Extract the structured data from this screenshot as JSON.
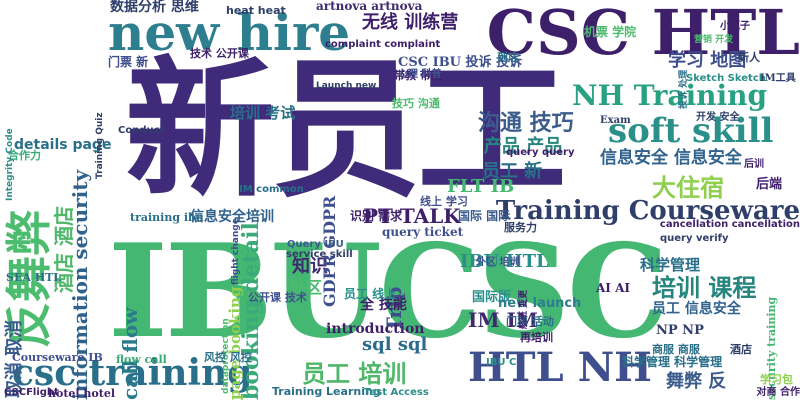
{
  "words": [
    {
      "text": "新员工",
      "color": "#3f2b7a"
    },
    {
      "text": "IBUCSC",
      "color": "#44b873"
    },
    {
      "text": "CSC HTL",
      "color": "#3e1f6a"
    },
    {
      "text": "new hire",
      "color": "#2d7e8e"
    },
    {
      "text": "反舞弊",
      "color": "#4cbc6e"
    },
    {
      "text": "csc training",
      "color": "#2a6f8a"
    },
    {
      "text": "HTL NH",
      "color": "#3f4f8e"
    },
    {
      "text": "soft skill",
      "color": "#2b8f8a"
    },
    {
      "text": "Training Courseware",
      "color": "#2f3f6a"
    },
    {
      "text": "booking detail",
      "color": "#3aaa78"
    },
    {
      "text": "NH Training",
      "color": "#27a182"
    },
    {
      "text": "information security",
      "color": "#30628e"
    },
    {
      "text": "大住宿",
      "color": "#8fcf4e"
    },
    {
      "text": "培训 课程",
      "color": "#26867e"
    },
    {
      "text": "员工 培训",
      "color": "#4eb76a"
    },
    {
      "text": "沟通 技巧",
      "color": "#3b5c8c"
    },
    {
      "text": "信息安全 信息安全",
      "color": "#30628e"
    },
    {
      "text": "无线 训练营",
      "color": "#3e1f6a"
    },
    {
      "text": "IBU HTL",
      "color": "#2a8f8a"
    },
    {
      "text": "call flow",
      "color": "#2a7a8c"
    },
    {
      "text": "sql sql",
      "color": "#2c6b8d"
    },
    {
      "text": "IM IM",
      "color": "#3e2a6e"
    },
    {
      "text": "舞弊 反",
      "color": "#3b5c8c"
    },
    {
      "text": "PT TALK",
      "color": "#3e1f6a"
    },
    {
      "text": "Trip",
      "color": "#3f4f8e"
    },
    {
      "text": "知识",
      "color": "#3e2a6e"
    },
    {
      "text": "GDPR GDPR",
      "color": "#3f4f8e"
    },
    {
      "text": "学习 地图",
      "color": "#3f4f8e"
    },
    {
      "text": "产品 产品",
      "color": "#26867e"
    },
    {
      "text": "员工 新",
      "color": "#2a6f8a"
    },
    {
      "text": "酒店 酒店",
      "color": "#4eb76a"
    },
    {
      "text": "取消 取消",
      "color": "#3b5c8c"
    },
    {
      "text": "page booking",
      "color": "#8fcf4e"
    },
    {
      "text": "details page",
      "color": "#2a6f8a"
    },
    {
      "text": "FLT IB",
      "color": "#44b873"
    },
    {
      "text": "数据分析 思维",
      "color": "#2f3f6a"
    },
    {
      "text": "heat heat",
      "color": "#2f3f6a"
    },
    {
      "text": "artnova artnova",
      "color": "#3e2a6e"
    },
    {
      "text": "CSC IBU 投诉 投诉",
      "color": "#3f4f8e"
    },
    {
      "text": "培训 考试",
      "color": "#2a6f8a"
    },
    {
      "text": "全 技能",
      "color": "#3e1f6a"
    },
    {
      "text": "外区",
      "color": "#4cbc6e"
    },
    {
      "text": "国际版",
      "color": "#2a8f8a"
    },
    {
      "text": "科学管理",
      "color": "#2a6f8a"
    },
    {
      "text": "员工 信息安全",
      "color": "#30628e"
    },
    {
      "text": "introduction",
      "color": "#3e1f6a"
    },
    {
      "text": "new launch",
      "color": "#2d7e8e"
    },
    {
      "text": "query ticket",
      "color": "#3f4f8e"
    },
    {
      "text": "信息安全培训",
      "color": "#30628e"
    },
    {
      "text": "Training Learning",
      "color": "#2a6f8a"
    },
    {
      "text": "Courseware IB",
      "color": "#3f4f8e"
    },
    {
      "text": "hotel hotel",
      "color": "#3e1f6a"
    },
    {
      "text": "Test Access",
      "color": "#2a8f8a"
    },
    {
      "text": "门票 新",
      "color": "#3f4f8e"
    },
    {
      "text": "技术 公开课",
      "color": "#3e1f6a"
    },
    {
      "text": "complaint complaint",
      "color": "#3e1f6a"
    },
    {
      "text": "service skill",
      "color": "#2f3f6a"
    },
    {
      "text": "Query IBU",
      "color": "#3b5c8c"
    },
    {
      "text": "AI AI",
      "color": "#3e1f6a"
    },
    {
      "text": "NP NP",
      "color": "#2f3f6a"
    },
    {
      "text": "dataprotection",
      "color": "#4cbc6e"
    },
    {
      "text": "SEA HTL",
      "color": "#2a6f8a"
    },
    {
      "text": "training ibu",
      "color": "#2a6f8a"
    },
    {
      "text": "IM common",
      "color": "#2a6f8a"
    },
    {
      "text": "flight change",
      "color": "#3f4f8e"
    },
    {
      "text": "cancellation cancellation",
      "color": "#3e1f6a"
    },
    {
      "text": "Exam",
      "color": "#2f3f6a"
    },
    {
      "text": "到店",
      "color": "#2a6f8a"
    },
    {
      "text": "机票 学院",
      "color": "#4cbc6e"
    },
    {
      "text": "小瓶子",
      "color": "#3e1f6a"
    },
    {
      "text": "后端",
      "color": "#3e1f6a"
    },
    {
      "text": "识别 需求",
      "color": "#3e1f6a"
    },
    {
      "text": "线上 学习",
      "color": "#3f4f8e"
    },
    {
      "text": "国际 国际",
      "color": "#3b5c8c"
    },
    {
      "text": "服务力",
      "color": "#2f3f6a"
    },
    {
      "text": "Sketch Sketch",
      "color": "#2a8f8a"
    },
    {
      "text": "IM工具",
      "color": "#2f3f6a"
    },
    {
      "text": "开发 安全",
      "color": "#2f3f6a"
    },
    {
      "text": "风控 风控",
      "color": "#2a6f8a"
    },
    {
      "text": "flow call",
      "color": "#3aaa78"
    },
    {
      "text": "员工 线上",
      "color": "#2a8f8a"
    },
    {
      "text": "公开课 技术",
      "color": "#3f4f8e"
    },
    {
      "text": "门票 活动",
      "color": "#2a6f8a"
    },
    {
      "text": "再培训",
      "color": "#3e1f6a"
    },
    {
      "text": "科学管理 科学管理",
      "color": "#2a6f8a"
    },
    {
      "text": "security training",
      "color": "#44b873"
    },
    {
      "text": "学习包",
      "color": "#8fcf4e"
    },
    {
      "text": "对商 合作",
      "color": "#3e1f6a"
    },
    {
      "text": "商服 商服",
      "color": "#2a6f8a"
    },
    {
      "text": "酒店",
      "color": "#2f3f6a"
    },
    {
      "text": "带教 带教",
      "color": "#3e1f6a"
    },
    {
      "text": "技巧 沟通",
      "color": "#4cbc6e"
    },
    {
      "text": "心理 科普",
      "color": "#3f4f8e"
    },
    {
      "text": "新人",
      "color": "#2f3f6a"
    },
    {
      "text": "合作力",
      "color": "#3aaa78"
    },
    {
      "text": "query query",
      "color": "#3e1f6a"
    },
    {
      "text": "query verify",
      "color": "#2f3f6a"
    },
    {
      "text": "CSCFlight",
      "color": "#3e1f6a"
    },
    {
      "text": "Conduct",
      "color": "#2f3f6a"
    },
    {
      "text": "Integrity Code",
      "color": "#2a8f8a"
    },
    {
      "text": "Launch new",
      "color": "#2f3f6a"
    },
    {
      "text": "后训",
      "color": "#3e1f6a"
    },
    {
      "text": "Training Quiz",
      "color": "#2f3f6a"
    },
    {
      "text": "IBU C",
      "color": "#2a8f8a"
    },
    {
      "text": "外区 培训",
      "color": "#3f4f8e"
    },
    {
      "text": "投诉 处理",
      "color": "#2a6f8a"
    },
    {
      "text": "营销 开发",
      "color": "#4cbc6e"
    },
    {
      "text": "航班 变更",
      "color": "#3e1f6a"
    }
  ]
}
